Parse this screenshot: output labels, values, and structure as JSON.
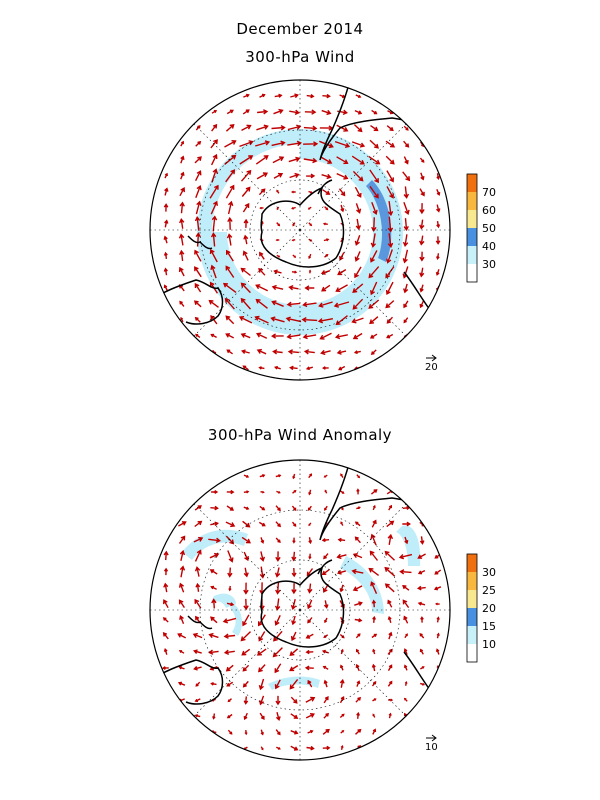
{
  "figure": {
    "title": "December 2014",
    "panels": [
      {
        "id": "wind",
        "title": "300-hPa Wind",
        "reference_vector": "20",
        "colorbar": {
          "labels": [
            "70",
            "60",
            "50",
            "40",
            "30"
          ],
          "colors": [
            "#ffffff",
            "#c8f0f8",
            "#4a90e0",
            "#f8e890",
            "#f8b840",
            "#f07010"
          ]
        }
      },
      {
        "id": "anomaly",
        "title": "300-hPa Wind Anomaly",
        "reference_vector": "10",
        "colorbar": {
          "labels": [
            "30",
            "25",
            "20",
            "15",
            "10"
          ],
          "colors": [
            "#ffffff",
            "#c8f0f8",
            "#4a90e0",
            "#f8e890",
            "#f8b840",
            "#f07010"
          ]
        }
      }
    ],
    "colors": {
      "vector": "#c00000",
      "coast": "#000000",
      "grid": "#000000",
      "shade_light": "#bfeefa",
      "shade_mid": "#9bd6f2",
      "shade_dark": "#5b97dd"
    }
  }
}
